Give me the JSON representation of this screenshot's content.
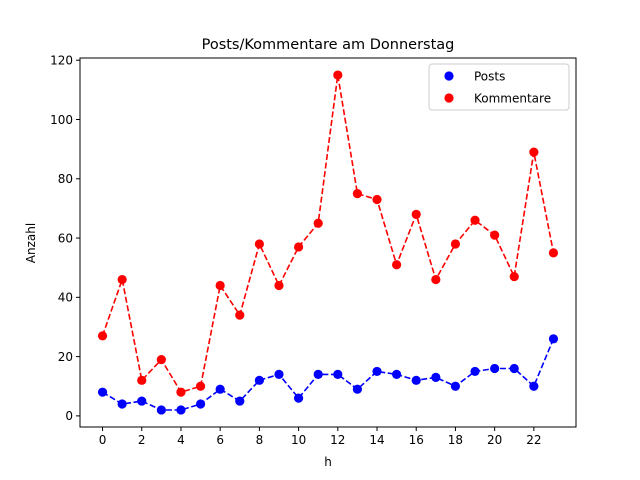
{
  "chart_data": {
    "type": "line",
    "title": "Posts/Kommentare am Donnerstag",
    "xlabel": "h",
    "ylabel": "Anzahl",
    "x": [
      0,
      1,
      2,
      3,
      4,
      5,
      6,
      7,
      8,
      9,
      10,
      11,
      12,
      13,
      14,
      15,
      16,
      17,
      18,
      19,
      20,
      21,
      22,
      23
    ],
    "xticks": [
      0,
      2,
      4,
      6,
      8,
      10,
      12,
      14,
      16,
      18,
      20,
      22
    ],
    "yticks": [
      0,
      20,
      40,
      60,
      80,
      100,
      120
    ],
    "xlim": [
      -1.15,
      24.15
    ],
    "ylim": [
      -3.75,
      120.75
    ],
    "grid": false,
    "legend_position": "upper right",
    "series": [
      {
        "name": "Posts",
        "color": "#0000ff",
        "linestyle": "dashed",
        "marker": "circle",
        "values": [
          8,
          4,
          5,
          2,
          2,
          4,
          9,
          5,
          12,
          14,
          6,
          14,
          14,
          9,
          15,
          14,
          12,
          13,
          10,
          15,
          16,
          16,
          10,
          26
        ]
      },
      {
        "name": "Kommentare",
        "color": "#ff0000",
        "linestyle": "dashed",
        "marker": "circle",
        "values": [
          27,
          46,
          12,
          19,
          8,
          10,
          44,
          34,
          58,
          44,
          57,
          65,
          115,
          75,
          73,
          51,
          68,
          46,
          58,
          66,
          61,
          47,
          89,
          55
        ]
      }
    ]
  }
}
